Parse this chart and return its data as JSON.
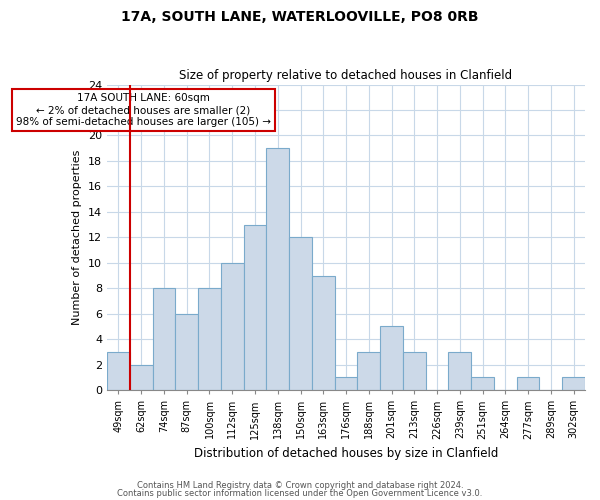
{
  "title1": "17A, SOUTH LANE, WATERLOOVILLE, PO8 0RB",
  "title2": "Size of property relative to detached houses in Clanfield",
  "xlabel": "Distribution of detached houses by size in Clanfield",
  "ylabel": "Number of detached properties",
  "bin_labels": [
    "49sqm",
    "62sqm",
    "74sqm",
    "87sqm",
    "100sqm",
    "112sqm",
    "125sqm",
    "138sqm",
    "150sqm",
    "163sqm",
    "176sqm",
    "188sqm",
    "201sqm",
    "213sqm",
    "226sqm",
    "239sqm",
    "251sqm",
    "264sqm",
    "277sqm",
    "289sqm",
    "302sqm"
  ],
  "bar_heights": [
    3,
    2,
    8,
    6,
    8,
    10,
    13,
    19,
    12,
    9,
    1,
    3,
    5,
    3,
    0,
    3,
    1,
    0,
    1,
    0,
    1
  ],
  "bar_color": "#ccd9e8",
  "bar_edge_color": "#7aaacb",
  "highlight_line_color": "#cc0000",
  "annotation_title": "17A SOUTH LANE: 60sqm",
  "annotation_line1": "← 2% of detached houses are smaller (2)",
  "annotation_line2": "98% of semi-detached houses are larger (105) →",
  "annotation_box_edge": "#cc0000",
  "ylim": [
    0,
    24
  ],
  "yticks": [
    0,
    2,
    4,
    6,
    8,
    10,
    12,
    14,
    16,
    18,
    20,
    22,
    24
  ],
  "footer1": "Contains HM Land Registry data © Crown copyright and database right 2024.",
  "footer2": "Contains public sector information licensed under the Open Government Licence v3.0."
}
